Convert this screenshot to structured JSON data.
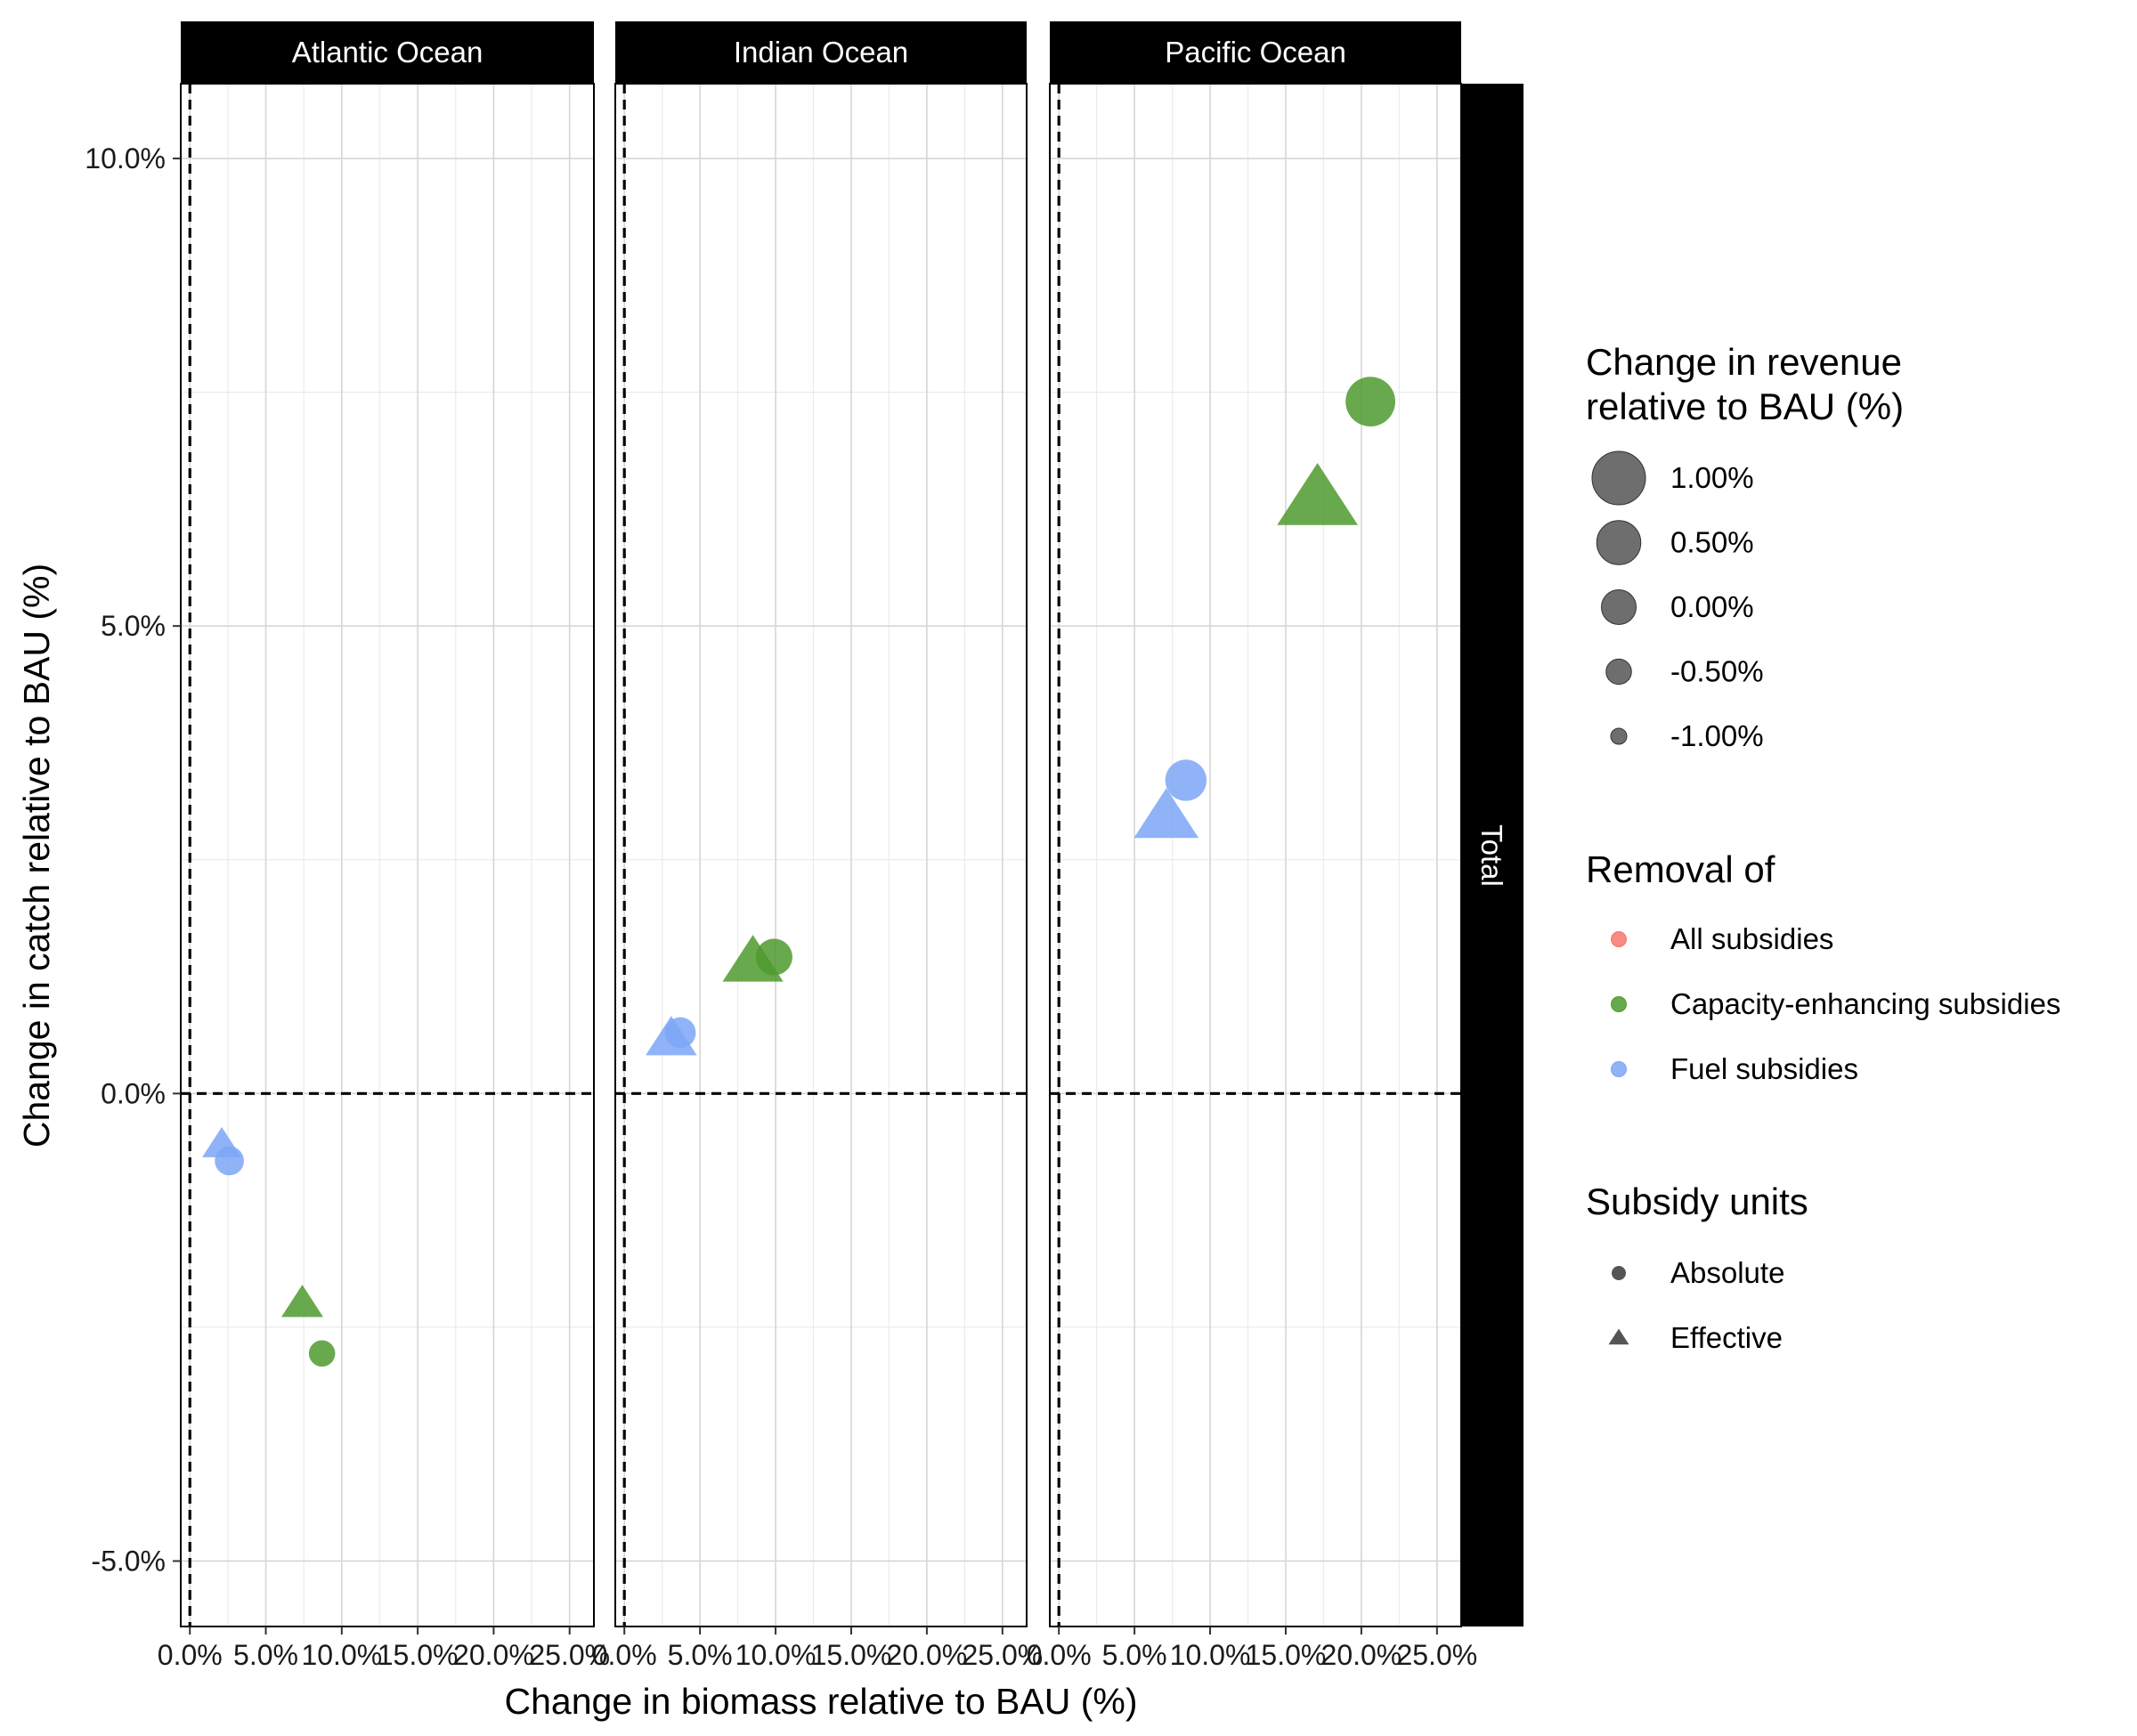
{
  "chart_data": {
    "type": "scatter",
    "title": "",
    "xlabel": "Change in biomass relative to BAU (%)",
    "ylabel": "Change in catch relative to BAU (%)",
    "facets": [
      "Atlantic Ocean",
      "Indian Ocean",
      "Pacific Ocean"
    ],
    "row_strip": "Total",
    "x_ticks": [
      "0.0%",
      "5.0%",
      "10.0%",
      "15.0%",
      "20.0%",
      "25.0%"
    ],
    "y_ticks": [
      "-5.0%",
      "0.0%",
      "5.0%",
      "10.0%"
    ],
    "xlim": [
      -0.6,
      26.6
    ],
    "ylim": [
      -5.7,
      10.8
    ],
    "reference_lines": {
      "x": 0,
      "y": 0
    },
    "grid": true,
    "legend_position": "right",
    "colors": {
      "All subsidies": "#F8766D",
      "Capacity-enhancing subsidies": "#4F9A2E",
      "Fuel subsidies": "#7CA6F6"
    },
    "series": [
      {
        "facet": "Atlantic Ocean",
        "removal": "Fuel subsidies",
        "units": "Effective",
        "x": 2.1,
        "y": -0.55,
        "revenue": -0.4
      },
      {
        "facet": "Atlantic Ocean",
        "removal": "Fuel subsidies",
        "units": "Absolute",
        "x": 2.6,
        "y": -0.72,
        "revenue": -0.3
      },
      {
        "facet": "Atlantic Ocean",
        "removal": "Capacity-enhancing subsidies",
        "units": "Effective",
        "x": 7.4,
        "y": -2.25,
        "revenue": -0.3
      },
      {
        "facet": "Atlantic Ocean",
        "removal": "Capacity-enhancing subsidies",
        "units": "Absolute",
        "x": 8.7,
        "y": -2.78,
        "revenue": -0.45
      },
      {
        "facet": "Indian Ocean",
        "removal": "Fuel subsidies",
        "units": "Effective",
        "x": 3.1,
        "y": 0.58,
        "revenue": 0.05
      },
      {
        "facet": "Indian Ocean",
        "removal": "Fuel subsidies",
        "units": "Absolute",
        "x": 3.7,
        "y": 0.65,
        "revenue": -0.2
      },
      {
        "facet": "Indian Ocean",
        "removal": "Capacity-enhancing subsidies",
        "units": "Effective",
        "x": 8.5,
        "y": 1.4,
        "revenue": 0.4
      },
      {
        "facet": "Indian Ocean",
        "removal": "Capacity-enhancing subsidies",
        "units": "Absolute",
        "x": 9.9,
        "y": 1.46,
        "revenue": 0.1
      },
      {
        "facet": "Pacific Ocean",
        "removal": "Fuel subsidies",
        "units": "Effective",
        "x": 7.1,
        "y": 2.95,
        "revenue": 0.55
      },
      {
        "facet": "Pacific Ocean",
        "removal": "Fuel subsidies",
        "units": "Absolute",
        "x": 8.4,
        "y": 3.35,
        "revenue": 0.35
      },
      {
        "facet": "Pacific Ocean",
        "removal": "Capacity-enhancing subsidies",
        "units": "Effective",
        "x": 17.1,
        "y": 6.35,
        "revenue": 1.15
      },
      {
        "facet": "Pacific Ocean",
        "removal": "Capacity-enhancing subsidies",
        "units": "Absolute",
        "x": 20.6,
        "y": 7.4,
        "revenue": 0.8
      }
    ],
    "legend": {
      "size": {
        "title_line1": "Change in revenue",
        "title_line2": "relative to BAU (%)",
        "entries": [
          {
            "label": "1.00%",
            "value": 1.0
          },
          {
            "label": "0.50%",
            "value": 0.5
          },
          {
            "label": "0.00%",
            "value": 0.0
          },
          {
            "label": "-0.50%",
            "value": -0.5
          },
          {
            "label": "-1.00%",
            "value": -1.0
          }
        ]
      },
      "color": {
        "title": "Removal of",
        "entries": [
          "All subsidies",
          "Capacity-enhancing subsidies",
          "Fuel subsidies"
        ]
      },
      "shape": {
        "title": "Subsidy units",
        "entries": [
          {
            "label": "Absolute",
            "shape": "circle"
          },
          {
            "label": "Effective",
            "shape": "triangle"
          }
        ]
      }
    }
  }
}
